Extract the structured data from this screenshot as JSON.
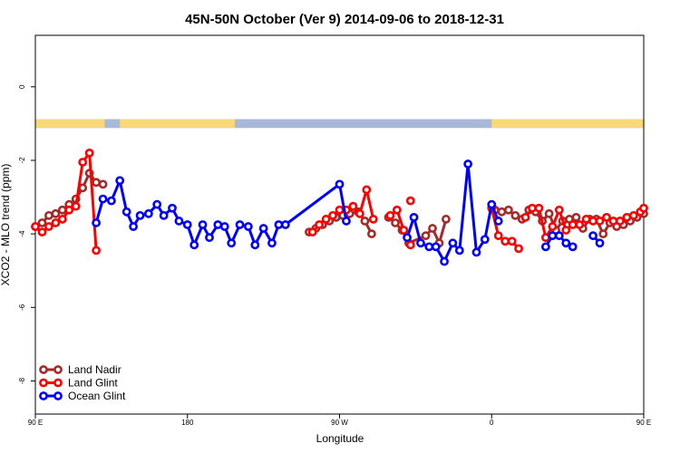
{
  "chart_data": {
    "type": "line",
    "title": "45N-50N October (Ver 9)   2014-09-06 to 2018-12-31",
    "xlabel": "Longitude",
    "ylabel": "XCO2 - MLO trend (ppm)",
    "xlim": [
      90,
      450
    ],
    "ylim": [
      -8.9,
      1.4
    ],
    "x_ticks": [
      {
        "value": 90,
        "label": "90 E"
      },
      {
        "value": 180,
        "label": "180"
      },
      {
        "value": 270,
        "label": "90 W"
      },
      {
        "value": 360,
        "label": "0"
      },
      {
        "value": 450,
        "label": "90 E"
      },
      {
        "value": 540,
        "label": "180"
      }
    ],
    "y_ticks": [
      {
        "value": 0,
        "label": "0"
      },
      {
        "value": -2,
        "label": "-2"
      },
      {
        "value": -4,
        "label": "-4"
      },
      {
        "value": -6,
        "label": "-6"
      },
      {
        "value": -8,
        "label": "-8"
      }
    ],
    "landmask_band": {
      "y_range": [
        -1.12,
        -0.88
      ],
      "land_color": "#f8d878",
      "ocean_color": "#a8b8d8",
      "land_segments": [
        [
          90,
          131
        ],
        [
          140,
          208
        ],
        [
          360,
          491
        ]
      ]
    },
    "legend_position": "bottom-left",
    "series": [
      {
        "name": "Land Nadir",
        "color": "#a52a2a",
        "segments": [
          [
            [
              90,
              -3.8
            ],
            [
              94,
              -3.7
            ],
            [
              98,
              -3.5
            ],
            [
              102,
              -3.45
            ],
            [
              106,
              -3.35
            ],
            [
              110,
              -3.2
            ],
            [
              114,
              -3.05
            ],
            [
              118,
              -2.75
            ],
            [
              122,
              -2.35
            ],
            [
              126,
              -2.6
            ],
            [
              130,
              -2.65
            ]
          ],
          [
            [
              252,
              -3.95
            ],
            [
              256,
              -3.85
            ],
            [
              260,
              -3.75
            ],
            [
              264,
              -3.65
            ],
            [
              268,
              -3.55
            ],
            [
              272,
              -3.5
            ],
            [
              276,
              -3.45
            ],
            [
              281,
              -3.4
            ],
            [
              285,
              -3.65
            ],
            [
              289,
              -4.0
            ]
          ],
          [
            [
              299,
              -3.55
            ],
            [
              303,
              -3.7
            ],
            [
              307,
              -3.9
            ],
            [
              311,
              -4.25
            ],
            [
              321,
              -4.05
            ],
            [
              325,
              -3.85
            ],
            [
              329,
              -4.25
            ],
            [
              333,
              -3.6
            ]
          ],
          [
            [
              362,
              -3.35
            ],
            [
              366,
              -3.4
            ],
            [
              370,
              -3.35
            ],
            [
              374,
              -3.5
            ],
            [
              378,
              -3.6
            ],
            [
              382,
              -3.35
            ],
            [
              386,
              -3.4
            ],
            [
              390,
              -3.65
            ],
            [
              394,
              -3.45
            ],
            [
              398,
              -3.9
            ],
            [
              402,
              -3.65
            ],
            [
              406,
              -3.6
            ],
            [
              410,
              -3.55
            ],
            [
              414,
              -3.85
            ],
            [
              418,
              -3.6
            ],
            [
              422,
              -3.6
            ],
            [
              426,
              -4.0
            ],
            [
              430,
              -3.7
            ],
            [
              434,
              -3.8
            ],
            [
              438,
              -3.75
            ],
            [
              442,
              -3.65
            ],
            [
              446,
              -3.55
            ],
            [
              450,
              -3.45
            ]
          ]
        ]
      },
      {
        "name": "Land Glint",
        "color": "#ff0000",
        "segments": [
          [
            [
              90,
              -3.8
            ],
            [
              94,
              -3.95
            ],
            [
              98,
              -3.8
            ],
            [
              102,
              -3.7
            ],
            [
              106,
              -3.6
            ],
            [
              110,
              -3.35
            ],
            [
              114,
              -3.25
            ],
            [
              118,
              -2.05
            ],
            [
              122,
              -1.8
            ],
            [
              126,
              -4.45
            ]
          ],
          [
            [
              254,
              -3.95
            ],
            [
              258,
              -3.75
            ],
            [
              262,
              -3.6
            ],
            [
              266,
              -3.5
            ],
            [
              270,
              -3.35
            ],
            [
              274,
              -3.35
            ],
            [
              278,
              -3.25
            ],
            [
              282,
              -3.45
            ],
            [
              286,
              -2.8
            ],
            [
              290,
              -3.6
            ]
          ],
          [
            [
              300,
              -3.5
            ],
            [
              304,
              -3.35
            ],
            [
              308,
              -3.9
            ],
            [
              312,
              -4.3
            ]
          ],
          [
            [
              312,
              -3.1
            ]
          ],
          [
            [
              360,
              -3.3
            ],
            [
              364,
              -4.05
            ],
            [
              368,
              -4.2
            ],
            [
              372,
              -4.2
            ],
            [
              376,
              -4.4
            ]
          ],
          [
            [
              380,
              -3.55
            ],
            [
              384,
              -3.3
            ],
            [
              388,
              -3.3
            ],
            [
              392,
              -4.1
            ],
            [
              396,
              -3.8
            ],
            [
              400,
              -3.35
            ],
            [
              404,
              -3.9
            ],
            [
              408,
              -3.75
            ],
            [
              412,
              -3.75
            ],
            [
              416,
              -3.6
            ],
            [
              420,
              -3.65
            ],
            [
              424,
              -3.65
            ],
            [
              428,
              -3.55
            ],
            [
              432,
              -3.65
            ],
            [
              436,
              -3.65
            ],
            [
              440,
              -3.55
            ],
            [
              444,
              -3.5
            ],
            [
              448,
              -3.4
            ],
            [
              450,
              -3.3
            ]
          ]
        ]
      },
      {
        "name": "Ocean Glint",
        "color": "#0000ff",
        "segments": [
          [
            [
              126,
              -3.7
            ],
            [
              130,
              -3.05
            ],
            [
              135,
              -3.1
            ],
            [
              140,
              -2.55
            ],
            [
              144,
              -3.4
            ],
            [
              148,
              -3.8
            ],
            [
              152,
              -3.5
            ],
            [
              157,
              -3.45
            ],
            [
              162,
              -3.2
            ],
            [
              166,
              -3.5
            ],
            [
              171,
              -3.3
            ],
            [
              175,
              -3.65
            ],
            [
              180,
              -3.75
            ],
            [
              184,
              -4.3
            ],
            [
              189,
              -3.75
            ],
            [
              193,
              -4.1
            ],
            [
              198,
              -3.75
            ],
            [
              202,
              -3.8
            ],
            [
              206,
              -4.25
            ],
            [
              211,
              -3.75
            ],
            [
              216,
              -3.8
            ],
            [
              220,
              -4.3
            ],
            [
              225,
              -3.85
            ],
            [
              230,
              -4.25
            ],
            [
              234,
              -3.75
            ],
            [
              238,
              -3.75
            ],
            [
              270,
              -2.65
            ],
            [
              274,
              -3.65
            ]
          ],
          [
            [
              310,
              -4.1
            ],
            [
              314,
              -3.55
            ],
            [
              318,
              -4.25
            ],
            [
              323,
              -4.35
            ],
            [
              327,
              -4.35
            ],
            [
              332,
              -4.75
            ],
            [
              337,
              -4.25
            ],
            [
              341,
              -4.45
            ],
            [
              346,
              -2.1
            ],
            [
              351,
              -4.5
            ],
            [
              356,
              -4.15
            ],
            [
              360,
              -3.2
            ],
            [
              364,
              -3.65
            ]
          ],
          [
            [
              392,
              -4.35
            ],
            [
              396,
              -4.05
            ],
            [
              400,
              -4.05
            ],
            [
              404,
              -4.25
            ],
            [
              408,
              -4.35
            ]
          ],
          [
            [
              420,
              -4.05
            ],
            [
              424,
              -4.25
            ]
          ]
        ]
      }
    ]
  }
}
